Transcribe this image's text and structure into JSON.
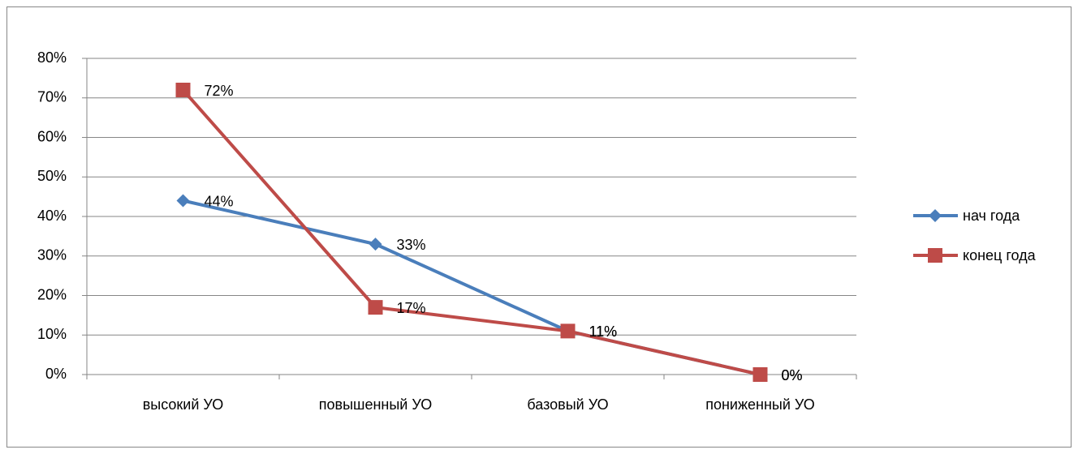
{
  "chart_data": {
    "type": "line",
    "categories": [
      "высокий УО",
      "повышенный УО",
      "базовый УО",
      "пониженный УО"
    ],
    "series": [
      {
        "name": "нач года",
        "color": "#4a7ebb",
        "marker": "diamond",
        "values": [
          44,
          33,
          11,
          0
        ],
        "value_labels": [
          "44%",
          "33%",
          "11%",
          "0%"
        ]
      },
      {
        "name": "конец года",
        "color": "#be4b48",
        "marker": "square",
        "values": [
          72,
          17,
          11,
          0
        ],
        "value_labels": [
          "72%",
          "17%",
          "11%",
          "0%"
        ]
      }
    ],
    "ylim": [
      0,
      80
    ],
    "yticks": [
      {
        "value": 0,
        "label": "0%"
      },
      {
        "value": 10,
        "label": "10%"
      },
      {
        "value": 20,
        "label": "20%"
      },
      {
        "value": 30,
        "label": "30%"
      },
      {
        "value": 40,
        "label": "40%"
      },
      {
        "value": 50,
        "label": "50%"
      },
      {
        "value": 60,
        "label": "60%"
      },
      {
        "value": 70,
        "label": "70%"
      },
      {
        "value": 80,
        "label": "80%"
      }
    ],
    "grid": true,
    "legend": "right"
  }
}
